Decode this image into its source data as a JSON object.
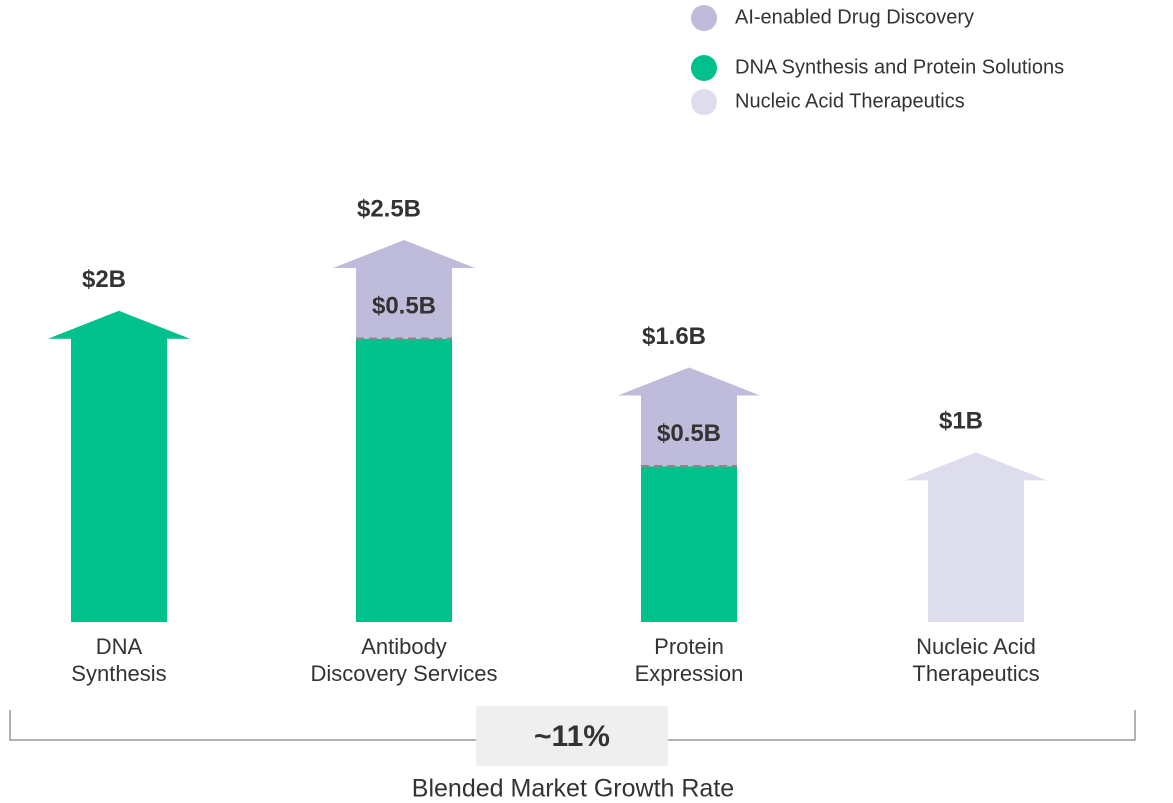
{
  "chart_data": {
    "type": "bar",
    "categories": [
      [
        "DNA",
        "Synthesis"
      ],
      [
        "Antibody",
        "Discovery Services"
      ],
      [
        "Protein",
        "Expression"
      ],
      [
        "Nucleic Acid",
        "Therapeutics"
      ]
    ],
    "series": [
      {
        "name": "DNA Synthesis and Protein Solutions",
        "color": "#00c08b",
        "values": [
          2,
          2.0,
          1.1,
          null
        ]
      },
      {
        "name": "AI-enabled Drug Discovery",
        "color": "#bfbcdb",
        "values": [
          null,
          0.5,
          0.5,
          null
        ],
        "value_labels": [
          null,
          "$0.5B",
          "$0.5B",
          null
        ]
      },
      {
        "name": "Nucleic Acid Therapeutics",
        "color": "#dedded",
        "values": [
          null,
          null,
          null,
          1
        ]
      }
    ],
    "legend_order": [
      1,
      0,
      2
    ],
    "totals": [
      2,
      2.5,
      1.6,
      1
    ],
    "total_labels": [
      "$2B",
      "$2.5B",
      "$1.6B",
      "$1B"
    ],
    "growth_rate": "~11%",
    "growth_label": "Blended Market Growth Rate"
  }
}
